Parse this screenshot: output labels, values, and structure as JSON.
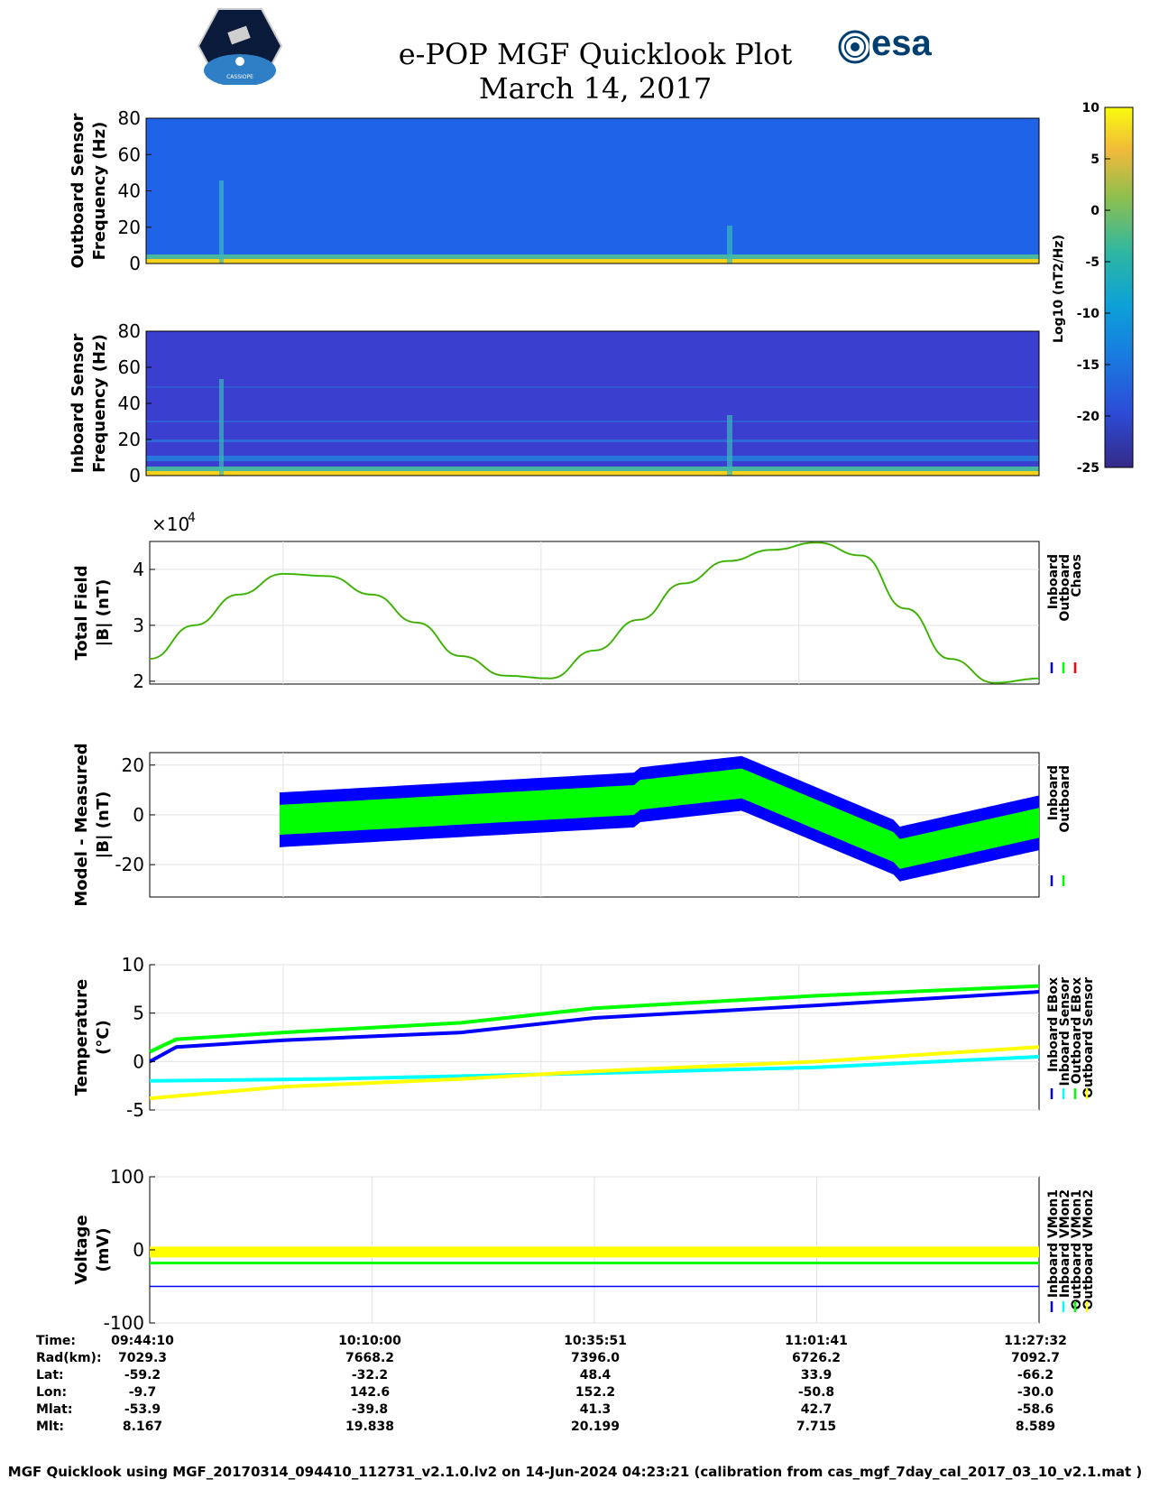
{
  "header": {
    "title_line1": "e-POP MGF Quicklook Plot",
    "title_line2": "March 14, 2017",
    "esa_logo_text": "esa",
    "cassiope_logo_text": "CASSIOPE"
  },
  "footer": "MGF Quicklook using MGF_20170314_094410_112731_v2.1.0.lv2 on 14-Jun-2024 04:23:21 (calibration from cas_mgf_7day_cal_2017_03_10_v2.1.mat )",
  "chart_data": [
    {
      "type": "heatmap",
      "ylabel": [
        "Outboard Sensor",
        "Frequency (Hz)"
      ],
      "yticks": [
        "0",
        "20",
        "40",
        "60",
        "80"
      ],
      "ylim": [
        0,
        80
      ]
    },
    {
      "type": "heatmap",
      "ylabel": [
        "Inboard Sensor",
        "Frequency (Hz)"
      ],
      "yticks": [
        "0",
        "20",
        "40",
        "60",
        "80"
      ],
      "ylim": [
        0,
        80
      ]
    },
    {
      "type": "colorbar",
      "label": "Log10 (nT2/Hz)",
      "ticks": [
        "10",
        "5",
        "0",
        "-5",
        "-10",
        "-15",
        "-20",
        "-25"
      ],
      "range": [
        -25,
        10
      ]
    },
    {
      "type": "line",
      "ylabel": [
        "Total Field",
        "|B| (nT)"
      ],
      "exponent_label": "×10",
      "exponent": "4",
      "yticks": [
        "2",
        "3",
        "4"
      ],
      "ylim": [
        1.95,
        4.5
      ],
      "legend": [
        "Inboard",
        "Outboard",
        "Chaos"
      ],
      "legend_colors": [
        "#0000ff",
        "#00ff00",
        "#ff0000"
      ],
      "x": [
        0,
        0.05,
        0.1,
        0.15,
        0.2,
        0.25,
        0.3,
        0.35,
        0.4,
        0.45,
        0.5,
        0.55,
        0.6,
        0.65,
        0.7,
        0.75,
        0.8,
        0.85,
        0.9,
        0.95,
        1.0
      ],
      "values": [
        2.4,
        3.0,
        3.55,
        3.92,
        3.88,
        3.55,
        3.05,
        2.45,
        2.1,
        2.05,
        2.55,
        3.1,
        3.75,
        4.15,
        4.35,
        4.48,
        4.25,
        3.3,
        2.4,
        1.97,
        2.05
      ]
    },
    {
      "type": "area",
      "ylabel": [
        "Model - Measured",
        "|B| (nT)"
      ],
      "yticks": [
        "-20",
        "0",
        "20"
      ],
      "ylim": [
        -33,
        25
      ],
      "legend": [
        "Inboard",
        "Outboard"
      ],
      "legend_colors": [
        "#0000ff",
        "#00ff00"
      ]
    },
    {
      "type": "scatter",
      "ylabel": [
        "Temperature",
        "(°C)"
      ],
      "yticks": [
        "-5",
        "0",
        "5",
        "10"
      ],
      "ylim": [
        -5,
        10
      ],
      "legend": [
        "Inboard EBox",
        "Inboard Sensor",
        "Outboard EBox",
        "Outboard Sensor"
      ],
      "legend_colors": [
        "#0000ff",
        "#00ffff",
        "#00ff00",
        "#ffff00"
      ]
    },
    {
      "type": "scatter",
      "ylabel": [
        "Voltage",
        "(mV)"
      ],
      "yticks": [
        "-100",
        "0",
        "100"
      ],
      "ylim": [
        -100,
        100
      ],
      "legend": [
        "Inboard VMon1",
        "Inboard VMon2",
        "Outboard VMon1",
        "Outboard VMon2"
      ],
      "legend_colors": [
        "#0000ff",
        "#00ffff",
        "#00ff00",
        "#ffff00"
      ]
    }
  ],
  "ephemeris": {
    "labels": [
      "Time:",
      "Rad(km):",
      "Lat:",
      "Lon:",
      "Mlat:",
      "Mlt:"
    ],
    "columns": [
      [
        "09:44:10",
        "7029.3",
        "-59.2",
        "-9.7",
        "-53.9",
        "8.167"
      ],
      [
        "10:10:00",
        "7668.2",
        "-32.2",
        "142.6",
        "-39.8",
        "19.838"
      ],
      [
        "10:35:51",
        "7396.0",
        "48.4",
        "152.2",
        "41.3",
        "20.199"
      ],
      [
        "11:01:41",
        "6726.2",
        "33.9",
        "-50.8",
        "42.7",
        "7.715"
      ],
      [
        "11:27:32",
        "7092.7",
        "-66.2",
        "-30.0",
        "-58.6",
        "8.589"
      ]
    ]
  }
}
